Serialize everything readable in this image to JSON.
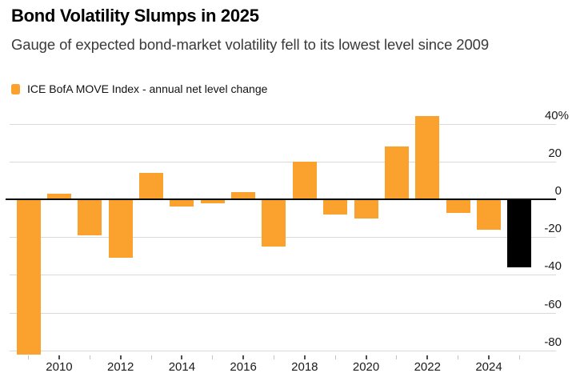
{
  "header": {
    "title": "Bond Volatility Slumps in 2025",
    "subtitle": "Gauge of expected bond-market volatility fell to its lowest level since 2009",
    "legend": {
      "label": "ICE BofA MOVE Index - annual net level change",
      "swatch_color": "#faa22d"
    }
  },
  "chart_data": {
    "type": "bar",
    "title": "Bond Volatility Slumps in 2025",
    "subtitle": "Gauge of expected bond-market volatility fell to its lowest level since 2009",
    "series": [
      {
        "name": "ICE BofA MOVE Index - annual net level change",
        "x": [
          2009,
          2010,
          2011,
          2012,
          2013,
          2014,
          2015,
          2016,
          2017,
          2018,
          2019,
          2020,
          2021,
          2022,
          2023,
          2024,
          2025
        ],
        "values": [
          -82,
          3,
          -19,
          -31,
          14,
          -4,
          -2,
          4,
          -25,
          20,
          -8,
          -10,
          28,
          44,
          -7,
          -16,
          -36
        ]
      }
    ],
    "unit": "%",
    "colors": {
      "bar_default": "#faa22d",
      "bar_highlight": "#000000",
      "highlight_x": 2025,
      "gridline": "#d9d9d9",
      "zero_line": "#000000"
    },
    "y_axis": {
      "ticks": [
        40,
        20,
        0,
        -20,
        -40,
        -60,
        -80
      ],
      "tick_labels": [
        "40%",
        "20",
        "0",
        "-20",
        "-40",
        "-60",
        "-80"
      ],
      "range": [
        -84,
        46
      ],
      "side": "right"
    },
    "x_axis": {
      "tick_years": [
        2009,
        2010,
        2011,
        2012,
        2013,
        2014,
        2015,
        2016,
        2017,
        2018,
        2019,
        2020,
        2021,
        2022,
        2023,
        2024,
        2025
      ],
      "labeled_years": [
        "2010",
        "2012",
        "2014",
        "2016",
        "2018",
        "2020",
        "2022",
        "2024"
      ]
    },
    "grid": true,
    "legend_position": "top-left"
  }
}
